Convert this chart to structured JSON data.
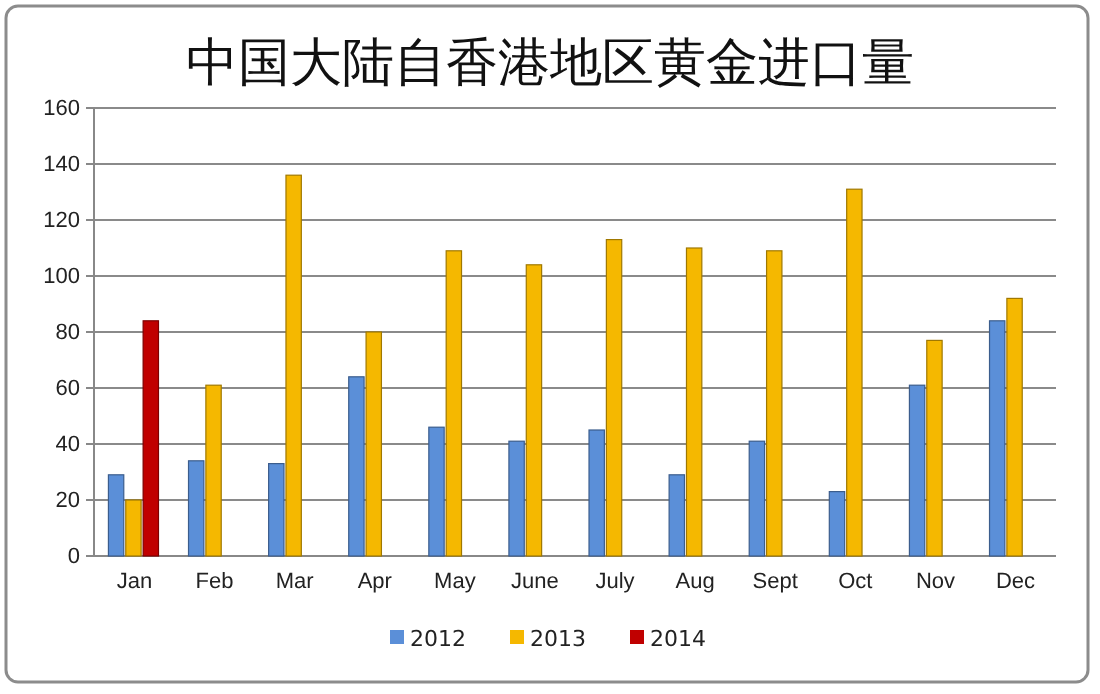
{
  "chart_data": {
    "type": "bar",
    "title": "中国大陆自香港地区黄金进口量",
    "categories": [
      "Jan",
      "Feb",
      "Mar",
      "Apr",
      "May",
      "June",
      "July",
      "Aug",
      "Sept",
      "Oct",
      "Nov",
      "Dec"
    ],
    "series": [
      {
        "name": "2012",
        "color": "#5b8fd8",
        "values": [
          29,
          34,
          33,
          64,
          46,
          41,
          45,
          29,
          41,
          23,
          61,
          84
        ]
      },
      {
        "name": "2013",
        "color": "#f5b800",
        "values": [
          20,
          61,
          136,
          80,
          109,
          104,
          113,
          110,
          109,
          131,
          77,
          92
        ]
      },
      {
        "name": "2014",
        "color": "#c00000",
        "values": [
          84,
          null,
          null,
          null,
          null,
          null,
          null,
          null,
          null,
          null,
          null,
          null
        ]
      }
    ],
    "ylim": [
      0,
      160
    ],
    "yticks": [
      0,
      20,
      40,
      60,
      80,
      100,
      120,
      140,
      160
    ],
    "grid": "y",
    "legend": "bottom"
  }
}
